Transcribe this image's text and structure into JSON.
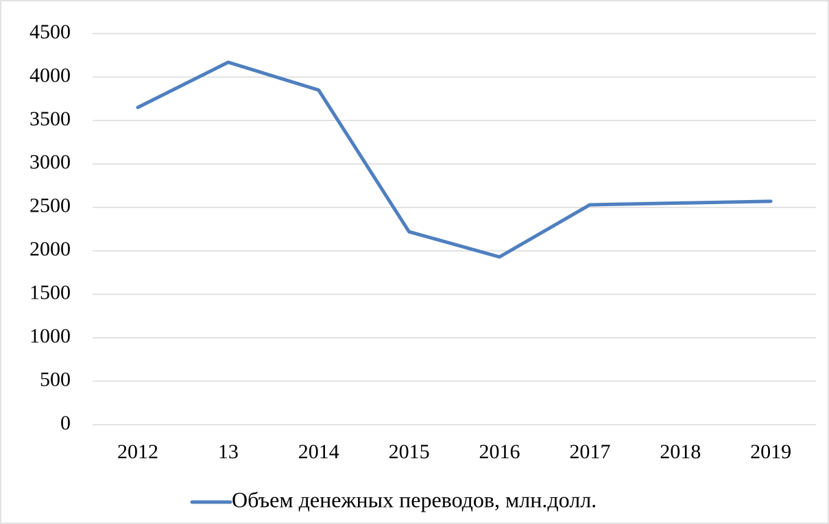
{
  "chart_data": {
    "type": "line",
    "categories": [
      "2012",
      "13",
      "2014",
      "2015",
      "2016",
      "2017",
      "2018",
      "2019"
    ],
    "series": [
      {
        "name": "Объем денежных переводов, млн.долл.",
        "color": "#4f7fbf",
        "values": [
          3650,
          4170,
          3850,
          2220,
          1930,
          2530,
          2550,
          2570
        ]
      }
    ],
    "ylim": [
      0,
      4500
    ],
    "yticks": [
      0,
      500,
      1000,
      1500,
      2000,
      2500,
      3000,
      3500,
      4000,
      4500
    ],
    "grid": true,
    "legend": "bottom"
  }
}
